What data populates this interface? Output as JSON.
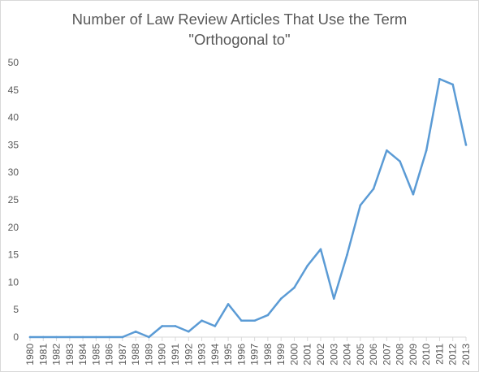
{
  "chart_data": {
    "type": "line",
    "title_lines": [
      "Number of Law Review Articles That Use the Term",
      "\"Orthogonal to\""
    ],
    "xlabel": "",
    "ylabel": "",
    "categories": [
      "1980",
      "1981",
      "1982",
      "1983",
      "1984",
      "1985",
      "1986",
      "1987",
      "1988",
      "1989",
      "1990",
      "1991",
      "1992",
      "1993",
      "1994",
      "1995",
      "1996",
      "1997",
      "1998",
      "1999",
      "2000",
      "2001",
      "2002",
      "2003",
      "2004",
      "2005",
      "2006",
      "2007",
      "2008",
      "2009",
      "2010",
      "2011",
      "2012",
      "2013"
    ],
    "series": [
      {
        "values": [
          0,
          0,
          0,
          0,
          0,
          0,
          0,
          0,
          1,
          0,
          2,
          2,
          1,
          3,
          2,
          6,
          3,
          3,
          4,
          7,
          9,
          13,
          16,
          7,
          15,
          24,
          27,
          34,
          32,
          26,
          34,
          47,
          46,
          35
        ],
        "color": "#5b9bd5"
      }
    ],
    "ylim": [
      0,
      50
    ],
    "yticks": [
      0,
      5,
      10,
      15,
      20,
      25,
      30,
      35,
      40,
      45,
      50
    ],
    "grid": false,
    "legend": "none"
  }
}
